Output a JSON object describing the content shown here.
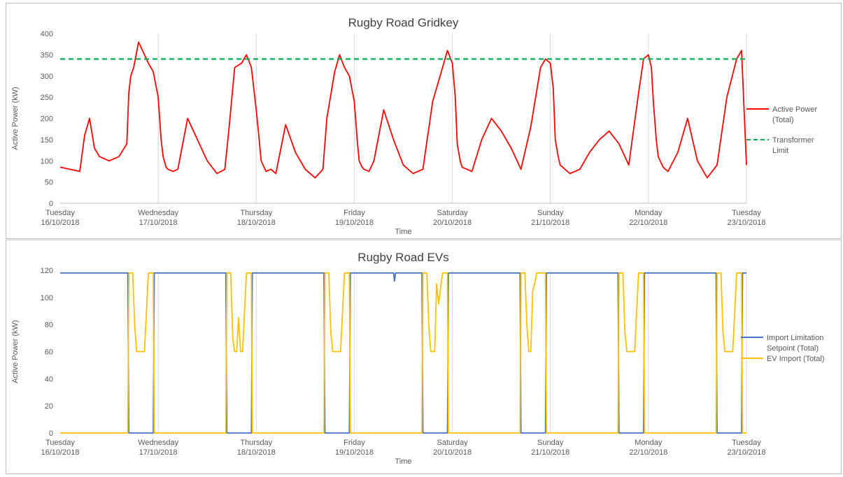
{
  "chart_data": [
    {
      "type": "line",
      "title": "Rugby Road Gridkey",
      "xlabel": "Time",
      "ylabel": "Active Power (kW)",
      "ylim": [
        0,
        400
      ],
      "yticks": [
        "0",
        "50",
        "100",
        "150",
        "200",
        "250",
        "300",
        "350",
        "400"
      ],
      "x_tick_labels": [
        [
          "Tuesday",
          "16/10/2018"
        ],
        [
          "Wednesday",
          "17/10/2018"
        ],
        [
          "Thursday",
          "18/10/2018"
        ],
        [
          "Friday",
          "19/10/2018"
        ],
        [
          "Saturday",
          "20/10/2018"
        ],
        [
          "Sunday",
          "21/10/2018"
        ],
        [
          "Monday",
          "22/10/2018"
        ],
        [
          "Tuesday",
          "23/10/2018"
        ]
      ],
      "xlim_days": [
        0,
        7
      ],
      "grid": "vertical",
      "legend_position": "right",
      "series": [
        {
          "name": "Active Power (Total)",
          "legend_lines": [
            "Active Power",
            "(Total)"
          ],
          "color": "#ff0000",
          "style": "solid",
          "x_days": [
            0,
            0.1,
            0.2,
            0.25,
            0.3,
            0.35,
            0.4,
            0.5,
            0.6,
            0.68,
            0.7,
            0.72,
            0.75,
            0.8,
            0.9,
            0.95,
            1.0,
            1.03,
            1.05,
            1.08,
            1.1,
            1.15,
            1.2,
            1.3,
            1.4,
            1.5,
            1.6,
            1.68,
            1.72,
            1.78,
            1.85,
            1.9,
            1.95,
            2.0,
            2.03,
            2.05,
            2.08,
            2.1,
            2.15,
            2.2,
            2.3,
            2.4,
            2.5,
            2.6,
            2.68,
            2.72,
            2.8,
            2.85,
            2.9,
            2.95,
            3.0,
            3.03,
            3.05,
            3.08,
            3.1,
            3.15,
            3.2,
            3.3,
            3.4,
            3.5,
            3.6,
            3.7,
            3.8,
            3.9,
            3.95,
            4.0,
            4.03,
            4.05,
            4.08,
            4.1,
            4.15,
            4.2,
            4.3,
            4.4,
            4.5,
            4.6,
            4.7,
            4.8,
            4.9,
            4.95,
            5.0,
            5.03,
            5.05,
            5.08,
            5.1,
            5.15,
            5.2,
            5.3,
            5.4,
            5.5,
            5.6,
            5.7,
            5.8,
            5.9,
            5.95,
            6.0,
            6.03,
            6.05,
            6.08,
            6.1,
            6.15,
            6.2,
            6.3,
            6.4,
            6.5,
            6.6,
            6.7,
            6.8,
            6.9,
            6.95,
            7.0
          ],
          "values": [
            85,
            80,
            75,
            160,
            200,
            130,
            110,
            100,
            110,
            140,
            260,
            300,
            320,
            380,
            330,
            310,
            250,
            150,
            110,
            85,
            80,
            75,
            80,
            200,
            150,
            100,
            70,
            80,
            170,
            320,
            330,
            350,
            320,
            220,
            150,
            100,
            85,
            75,
            80,
            70,
            185,
            120,
            80,
            60,
            80,
            200,
            310,
            350,
            320,
            300,
            240,
            150,
            100,
            85,
            80,
            75,
            100,
            220,
            150,
            90,
            70,
            80,
            240,
            320,
            360,
            330,
            250,
            140,
            100,
            85,
            80,
            75,
            150,
            200,
            170,
            130,
            80,
            180,
            320,
            340,
            330,
            270,
            150,
            110,
            90,
            80,
            70,
            80,
            120,
            150,
            170,
            140,
            90,
            260,
            340,
            350,
            320,
            240,
            150,
            110,
            85,
            75,
            120,
            200,
            100,
            60,
            90,
            250,
            340,
            360,
            90
          ]
        },
        {
          "name": "Transformer Limit",
          "legend_lines": [
            "Transformer",
            "Limit"
          ],
          "color": "#00b050",
          "style": "dashed",
          "x_days": [
            0,
            7
          ],
          "values": [
            340,
            340
          ]
        }
      ]
    },
    {
      "type": "line",
      "title": "Rugby Road EVs",
      "xlabel": "Time",
      "ylabel": "Active Power (kW)",
      "ylim": [
        0,
        120
      ],
      "yticks": [
        "0",
        "20",
        "40",
        "60",
        "80",
        "100",
        "120"
      ],
      "x_tick_labels": [
        [
          "Tuesday",
          "16/10/2018"
        ],
        [
          "Wednesday",
          "17/10/2018"
        ],
        [
          "Thursday",
          "18/10/2018"
        ],
        [
          "Friday",
          "19/10/2018"
        ],
        [
          "Saturday",
          "20/10/2018"
        ],
        [
          "Sunday",
          "21/10/2018"
        ],
        [
          "Monday",
          "22/10/2018"
        ],
        [
          "Tuesday",
          "23/10/2018"
        ]
      ],
      "xlim_days": [
        0,
        7
      ],
      "grid": "vertical",
      "legend_position": "right",
      "series": [
        {
          "name": "Import Limitation Setpoint (Total)",
          "legend_lines": [
            "Import Limitation",
            "Setpoint (Total)"
          ],
          "color": "#4472c4",
          "style": "solid",
          "x_days": [
            0,
            0.69,
            0.7,
            0.95,
            0.96,
            1.69,
            1.7,
            1.95,
            1.96,
            2.69,
            2.7,
            2.95,
            2.96,
            3.4,
            3.41,
            3.42,
            3.69,
            3.7,
            3.95,
            3.96,
            4.69,
            4.7,
            4.95,
            4.96,
            5.69,
            5.7,
            5.95,
            5.96,
            6.69,
            6.7,
            6.95,
            6.96,
            7.0
          ],
          "values": [
            118,
            118,
            0,
            0,
            118,
            118,
            0,
            0,
            118,
            118,
            0,
            0,
            118,
            118,
            112,
            118,
            118,
            0,
            0,
            118,
            118,
            0,
            0,
            118,
            118,
            0,
            0,
            118,
            118,
            0,
            0,
            118,
            118
          ]
        },
        {
          "name": "EV Import (Total)",
          "legend_lines": [
            "EV Import (Total)"
          ],
          "color": "#ffc000",
          "style": "solid",
          "x_days": [
            0,
            0.69,
            0.7,
            0.72,
            0.74,
            0.76,
            0.78,
            0.8,
            0.82,
            0.84,
            0.86,
            0.9,
            0.92,
            0.95,
            0.96,
            1.69,
            1.7,
            1.72,
            1.74,
            1.76,
            1.78,
            1.8,
            1.82,
            1.84,
            1.86,
            1.9,
            1.92,
            1.95,
            1.96,
            2.69,
            2.7,
            2.72,
            2.74,
            2.76,
            2.78,
            2.8,
            2.82,
            2.84,
            2.86,
            2.9,
            2.92,
            2.95,
            2.96,
            3.69,
            3.7,
            3.72,
            3.74,
            3.76,
            3.78,
            3.8,
            3.82,
            3.84,
            3.86,
            3.9,
            3.92,
            3.95,
            3.96,
            4.69,
            4.7,
            4.72,
            4.74,
            4.76,
            4.78,
            4.8,
            4.82,
            4.84,
            4.86,
            4.9,
            4.92,
            4.95,
            4.96,
            5.69,
            5.7,
            5.72,
            5.74,
            5.76,
            5.78,
            5.8,
            5.82,
            5.84,
            5.86,
            5.9,
            5.92,
            5.95,
            5.96,
            6.69,
            6.7,
            6.72,
            6.74,
            6.76,
            6.78,
            6.8,
            6.82,
            6.84,
            6.86,
            6.9,
            6.92,
            6.95,
            6.96,
            7.0
          ],
          "values": [
            0,
            0,
            118,
            118,
            118,
            80,
            60,
            60,
            60,
            60,
            60,
            118,
            118,
            118,
            0,
            0,
            118,
            118,
            118,
            70,
            60,
            60,
            85,
            60,
            60,
            118,
            118,
            118,
            0,
            0,
            118,
            118,
            118,
            75,
            60,
            60,
            60,
            60,
            60,
            118,
            118,
            118,
            0,
            0,
            118,
            118,
            118,
            80,
            60,
            60,
            60,
            110,
            95,
            118,
            118,
            118,
            0,
            0,
            118,
            118,
            118,
            80,
            60,
            60,
            105,
            110,
            118,
            118,
            118,
            118,
            0,
            0,
            118,
            118,
            118,
            75,
            60,
            60,
            60,
            60,
            60,
            118,
            118,
            118,
            0,
            0,
            118,
            118,
            118,
            75,
            60,
            60,
            60,
            60,
            60,
            118,
            118,
            118,
            0,
            0
          ]
        }
      ]
    }
  ]
}
